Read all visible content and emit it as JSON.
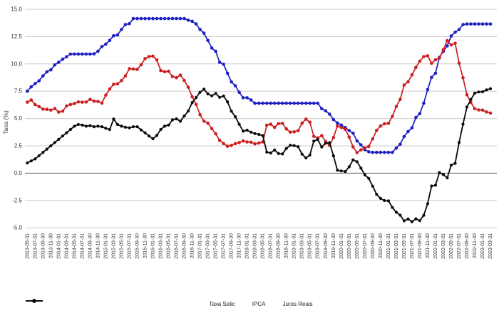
{
  "chart_data": {
    "type": "line",
    "title": "",
    "xlabel": "",
    "ylabel": "Taxa (%)",
    "ylim": [
      -5.0,
      15.0
    ],
    "yticks": [
      15.0,
      12.5,
      10.0,
      7.5,
      5.0,
      2.5,
      0.0,
      -2.5,
      -5.0
    ],
    "ytick_labels": [
      "15.0",
      "12.5",
      "10.0",
      "7.5",
      "5.0",
      "2.5",
      "0.0",
      "-2.5",
      "-5.0"
    ],
    "grid": true,
    "zero_line": true,
    "x_tick_step": 2,
    "legend_position": "bottom",
    "colors": {
      "grid": "#cccccc",
      "zero_line": "#555555",
      "tick_text": "#333333",
      "axis_title": "#333333"
    },
    "x": [
      "2013-05-31",
      "2013-06-30",
      "2013-07-31",
      "2013-08-31",
      "2013-09-30",
      "2013-10-31",
      "2013-11-30",
      "2013-12-31",
      "2014-01-31",
      "2014-02-28",
      "2014-03-31",
      "2014-04-30",
      "2014-05-31",
      "2014-06-30",
      "2014-07-31",
      "2014-08-31",
      "2014-09-30",
      "2014-10-31",
      "2014-11-30",
      "2014-12-31",
      "2015-01-31",
      "2015-02-28",
      "2015-03-31",
      "2015-04-30",
      "2015-05-31",
      "2015-06-30",
      "2015-07-31",
      "2015-08-31",
      "2015-09-30",
      "2015-10-31",
      "2015-11-30",
      "2015-12-31",
      "2016-01-31",
      "2016-02-29",
      "2016-03-31",
      "2016-04-30",
      "2016-05-31",
      "2016-06-30",
      "2016-07-31",
      "2016-08-31",
      "2016-09-30",
      "2016-10-31",
      "2016-11-30",
      "2016-12-31",
      "2017-01-31",
      "2017-02-28",
      "2017-03-31",
      "2017-04-30",
      "2017-05-31",
      "2017-06-30",
      "2017-07-31",
      "2017-08-31",
      "2017-09-30",
      "2017-10-31",
      "2017-11-30",
      "2017-12-31",
      "2018-01-31",
      "2018-02-28",
      "2018-03-31",
      "2018-04-30",
      "2018-05-31",
      "2018-06-30",
      "2018-07-31",
      "2018-08-31",
      "2018-09-30",
      "2018-10-31",
      "2018-11-30",
      "2018-12-31",
      "2019-01-31",
      "2019-02-28",
      "2019-03-31",
      "2019-04-30",
      "2019-05-31",
      "2019-06-30",
      "2019-07-31",
      "2019-08-31",
      "2019-09-30",
      "2019-10-31",
      "2019-11-30",
      "2019-12-31",
      "2020-01-31",
      "2020-02-29",
      "2020-03-31",
      "2020-04-30",
      "2020-05-31",
      "2020-06-30",
      "2020-07-31",
      "2020-08-31",
      "2020-09-30",
      "2020-10-31",
      "2020-11-30",
      "2020-12-31",
      "2021-01-31",
      "2021-02-28",
      "2021-03-31",
      "2021-04-30",
      "2021-05-31",
      "2021-06-30",
      "2021-07-31",
      "2021-08-31",
      "2021-09-30",
      "2021-10-31",
      "2021-11-30",
      "2021-12-31",
      "2022-01-31",
      "2022-02-28",
      "2022-03-31",
      "2022-04-30",
      "2022-05-31",
      "2022-06-30",
      "2022-07-31",
      "2022-08-31",
      "2022-09-30",
      "2022-10-31",
      "2022-11-30",
      "2022-12-31",
      "2023-01-31",
      "2023-02-28",
      "2023-03-31"
    ],
    "series": [
      {
        "name": "Taxa Selic",
        "color": "#1f1fc4",
        "marker_radius": 2.3,
        "line_width": 1.7,
        "values": [
          7.5,
          7.9,
          8.2,
          8.45,
          8.9,
          9.27,
          9.45,
          9.9,
          10.15,
          10.43,
          10.65,
          10.9,
          10.9,
          10.9,
          10.9,
          10.9,
          10.9,
          10.92,
          11.15,
          11.58,
          11.81,
          12.15,
          12.58,
          12.65,
          13.15,
          13.6,
          13.68,
          14.15,
          14.15,
          14.15,
          14.15,
          14.15,
          14.15,
          14.15,
          14.15,
          14.15,
          14.15,
          14.15,
          14.15,
          14.15,
          14.15,
          14.0,
          13.9,
          13.65,
          13.15,
          12.81,
          12.15,
          11.45,
          11.15,
          10.15,
          9.96,
          9.15,
          8.35,
          8.0,
          7.4,
          6.9,
          6.9,
          6.7,
          6.4,
          6.4,
          6.4,
          6.4,
          6.4,
          6.4,
          6.4,
          6.4,
          6.4,
          6.4,
          6.4,
          6.4,
          6.4,
          6.4,
          6.4,
          6.4,
          6.4,
          5.9,
          5.71,
          5.4,
          4.9,
          4.59,
          4.4,
          4.17,
          3.9,
          3.65,
          2.95,
          2.6,
          2.15,
          1.95,
          1.9,
          1.9,
          1.9,
          1.9,
          1.9,
          1.9,
          2.3,
          2.65,
          3.35,
          3.8,
          4.15,
          5.1,
          5.45,
          6.4,
          7.65,
          8.76,
          9.15,
          10.6,
          11.15,
          11.65,
          12.55,
          12.9,
          13.15,
          13.6,
          13.65,
          13.65,
          13.65,
          13.65,
          13.65,
          13.65,
          13.65
        ]
      },
      {
        "name": "IPCA",
        "color": "#cc1f1f",
        "marker_radius": 2.3,
        "line_width": 1.7,
        "values": [
          6.5,
          6.7,
          6.27,
          6.09,
          5.86,
          5.84,
          5.77,
          5.91,
          5.59,
          5.68,
          6.15,
          6.28,
          6.37,
          6.52,
          6.5,
          6.51,
          6.75,
          6.59,
          6.56,
          6.41,
          7.14,
          7.7,
          8.13,
          8.17,
          8.47,
          8.89,
          9.56,
          9.53,
          9.49,
          9.93,
          10.48,
          10.67,
          10.71,
          10.36,
          9.39,
          9.28,
          9.32,
          8.84,
          8.74,
          8.97,
          8.48,
          7.87,
          6.99,
          6.29,
          5.35,
          4.76,
          4.57,
          4.08,
          3.6,
          3.0,
          2.71,
          2.46,
          2.54,
          2.7,
          2.8,
          2.95,
          2.86,
          2.84,
          2.68,
          2.76,
          2.86,
          4.39,
          4.48,
          4.19,
          4.53,
          4.56,
          4.05,
          3.75,
          3.78,
          3.89,
          4.58,
          4.94,
          4.66,
          3.37,
          3.22,
          3.43,
          2.89,
          2.54,
          3.27,
          4.31,
          4.19,
          4.01,
          3.3,
          2.4,
          1.88,
          2.13,
          2.31,
          2.44,
          3.14,
          3.92,
          4.31,
          4.52,
          4.56,
          5.2,
          6.1,
          6.76,
          8.06,
          8.35,
          8.99,
          9.68,
          10.25,
          10.67,
          10.74,
          10.06,
          10.38,
          10.54,
          11.3,
          12.13,
          11.73,
          11.89,
          10.07,
          8.73,
          7.17,
          6.47,
          5.9,
          5.79,
          5.77,
          5.6,
          5.5
        ]
      },
      {
        "name": "Juros Reais",
        "color": "#0a0a0a",
        "marker_radius": 2.1,
        "line_width": 1.8,
        "values": [
          0.94,
          1.12,
          1.3,
          1.6,
          1.9,
          2.2,
          2.5,
          2.8,
          3.1,
          3.4,
          3.7,
          4.0,
          4.3,
          4.45,
          4.4,
          4.3,
          4.35,
          4.25,
          4.3,
          4.25,
          4.1,
          4.0,
          4.95,
          4.45,
          4.3,
          4.2,
          4.15,
          4.25,
          4.25,
          3.95,
          3.7,
          3.4,
          3.15,
          3.45,
          4.0,
          4.3,
          4.4,
          4.88,
          4.97,
          4.75,
          5.23,
          5.68,
          6.46,
          6.92,
          7.4,
          7.68,
          7.25,
          7.08,
          7.29,
          6.94,
          7.06,
          6.53,
          5.67,
          5.16,
          4.47,
          3.84,
          3.93,
          3.75,
          3.62,
          3.54,
          3.44,
          1.93,
          1.84,
          2.12,
          1.79,
          1.76,
          2.26,
          2.55,
          2.52,
          2.42,
          1.74,
          1.39,
          1.66,
          2.93,
          3.08,
          2.39,
          2.74,
          2.79,
          1.58,
          0.27,
          0.2,
          0.15,
          0.58,
          1.22,
          1.05,
          0.46,
          -0.16,
          -0.48,
          -1.2,
          -1.94,
          -2.31,
          -2.51,
          -2.54,
          -3.14,
          -3.58,
          -3.85,
          -4.36,
          -4.2,
          -4.44,
          -4.18,
          -4.35,
          -3.86,
          -2.79,
          -1.18,
          -1.11,
          0.05,
          -0.13,
          -0.43,
          0.73,
          0.9,
          2.8,
          4.48,
          6.05,
          6.74,
          7.32,
          7.43,
          7.45,
          7.62,
          7.73
        ]
      }
    ]
  }
}
